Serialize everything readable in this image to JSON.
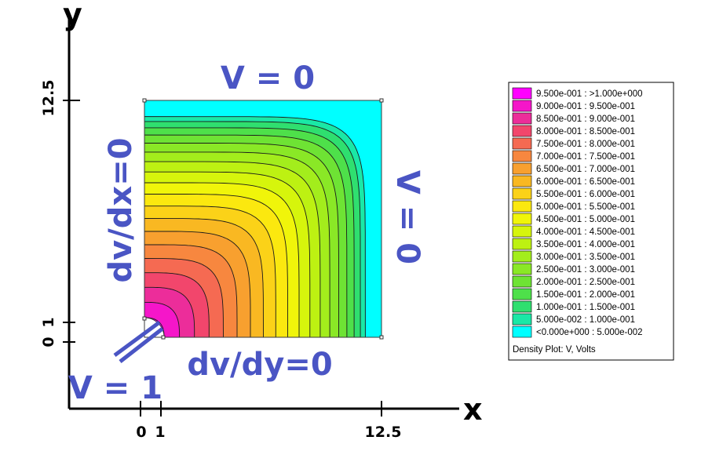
{
  "axes": {
    "x_label": "x",
    "y_label": "y",
    "x_ticks": [
      "0",
      "1",
      "12.5"
    ],
    "y_ticks": [
      "0",
      "1",
      "12.5"
    ]
  },
  "boundary_labels": {
    "top": "V = 0",
    "right": "V = 0",
    "left": "dv/dx=0",
    "bottom": "dv/dy=0",
    "inner": "V = 1"
  },
  "colors": {
    "accent": "#4a55c4",
    "axis": "#000000",
    "contour_line": "#1a1a1a"
  },
  "legend": {
    "title": "Density Plot: V, Volts",
    "entries": [
      {
        "label": "9.500e-001 : >1.000e+000",
        "color": "#ff00ff"
      },
      {
        "label": "9.000e-001 : 9.500e-001",
        "color": "#f516c9"
      },
      {
        "label": "8.500e-001 : 9.000e-001",
        "color": "#ec2d9a"
      },
      {
        "label": "8.000e-001 : 8.500e-001",
        "color": "#f2466c"
      },
      {
        "label": "7.500e-001 : 8.000e-001",
        "color": "#f56a52"
      },
      {
        "label": "7.000e-001 : 7.500e-001",
        "color": "#f7873f"
      },
      {
        "label": "6.500e-001 : 7.000e-001",
        "color": "#f8a02f"
      },
      {
        "label": "6.000e-001 : 6.500e-001",
        "color": "#f9b822"
      },
      {
        "label": "5.500e-001 : 6.000e-001",
        "color": "#fbd218"
      },
      {
        "label": "5.000e-001 : 5.500e-001",
        "color": "#fbe80f"
      },
      {
        "label": "4.500e-001 : 5.000e-001",
        "color": "#f0f50a"
      },
      {
        "label": "4.000e-001 : 4.500e-001",
        "color": "#d6f50c"
      },
      {
        "label": "3.500e-001 : 4.000e-001",
        "color": "#bdf112"
      },
      {
        "label": "3.000e-001 : 3.500e-001",
        "color": "#a3ed1c"
      },
      {
        "label": "2.500e-001 : 3.000e-001",
        "color": "#8ae826"
      },
      {
        "label": "2.000e-001 : 2.500e-001",
        "color": "#6ee334"
      },
      {
        "label": "1.500e-001 : 2.000e-001",
        "color": "#4ee04a"
      },
      {
        "label": "1.000e-001 : 1.500e-001",
        "color": "#2fdf6f"
      },
      {
        "label": "5.000e-002 : 1.000e-001",
        "color": "#1ae8a6"
      },
      {
        "label": "<0.000e+000 : 5.000e-002",
        "color": "#00ffff"
      }
    ]
  }
}
